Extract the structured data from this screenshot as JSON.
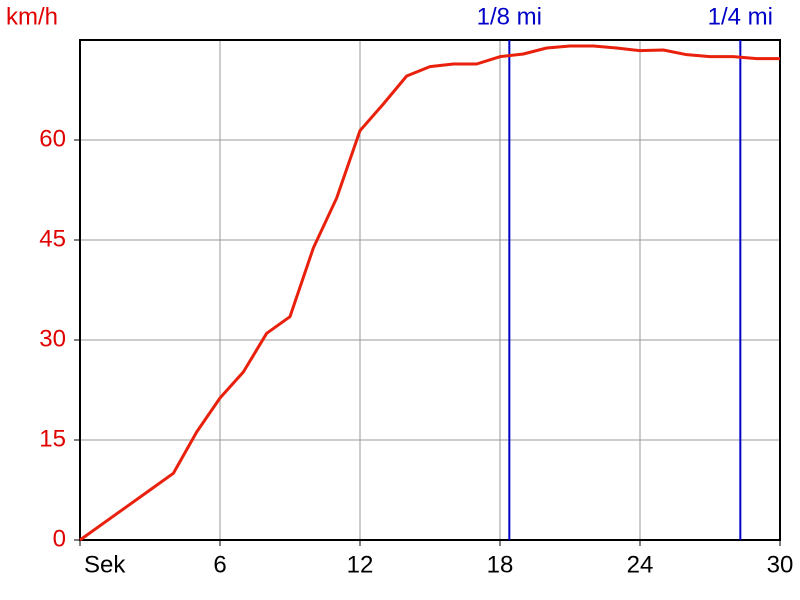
{
  "chart_data": {
    "type": "line",
    "y_label": "km/h",
    "x": [
      0,
      1,
      2,
      3,
      4,
      5,
      6,
      7,
      8,
      9,
      10,
      11,
      12,
      13,
      14,
      15,
      16,
      17,
      18,
      19,
      20,
      21,
      22,
      23,
      24,
      25,
      26,
      27,
      28,
      29,
      30
    ],
    "series": [
      {
        "color": "#e8200c",
        "values": [
          0,
          2.5,
          5,
          7.5,
          10,
          16.2,
          21.3,
          25.2,
          31.0,
          33.5,
          43.8,
          51.3,
          61.4,
          65.4,
          69.6,
          71.0,
          71.4,
          71.4,
          72.5,
          72.9,
          73.8,
          74.1,
          74.1,
          73.8,
          73.4,
          73.5,
          72.8,
          72.5,
          72.5,
          72.2,
          72.2
        ]
      }
    ],
    "xlim": [
      0,
      30
    ],
    "xticks": [
      {
        "value": 0,
        "label": "Sek"
      },
      6,
      12,
      18,
      24,
      30
    ],
    "ylim": [
      0,
      75
    ],
    "yticks": [
      0,
      15,
      30,
      45,
      60
    ],
    "grid": true,
    "axis_color": "#e00000",
    "markers": [
      {
        "label": "1/8 mi",
        "x": 18.4,
        "color": "#0000c8"
      },
      {
        "label": "1/4 mi",
        "x": 28.3,
        "color": "#0000c8"
      }
    ]
  }
}
